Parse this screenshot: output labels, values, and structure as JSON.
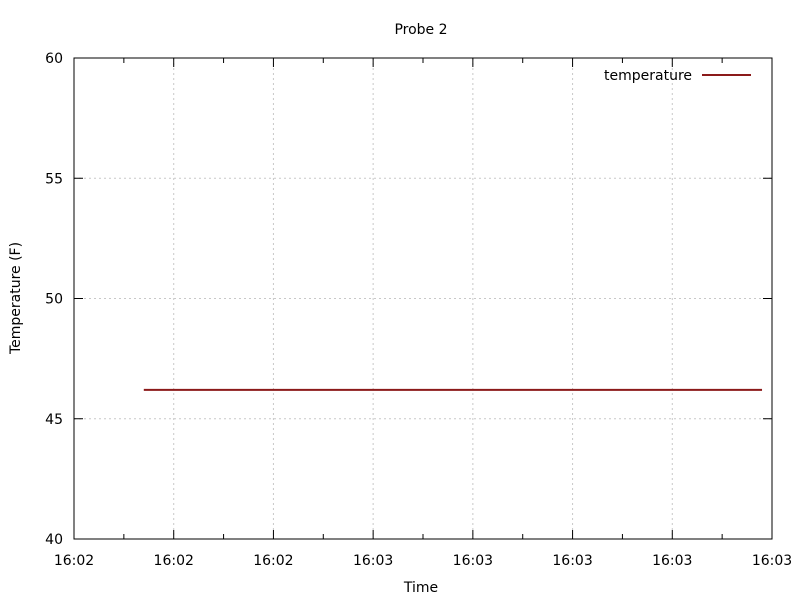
{
  "chart_data": {
    "type": "line",
    "title": "Probe 2",
    "xlabel": "Time",
    "ylabel": "Temperature (F)",
    "ylim": [
      40,
      60
    ],
    "yticks": [
      40,
      45,
      50,
      55,
      60
    ],
    "xlim": [
      0,
      7
    ],
    "xticks": [
      0,
      1,
      2,
      3,
      4,
      5,
      6,
      7
    ],
    "xtick_labels": [
      "16:02",
      "16:02",
      "16:02",
      "16:03",
      "16:03",
      "16:03",
      "16:03",
      "16:03"
    ],
    "grid": true,
    "legend": "top-right",
    "series": [
      {
        "name": "temperature",
        "color": "#8b1a1a",
        "x": [
          0.7,
          6.9
        ],
        "y": [
          46.2,
          46.2
        ]
      }
    ]
  }
}
